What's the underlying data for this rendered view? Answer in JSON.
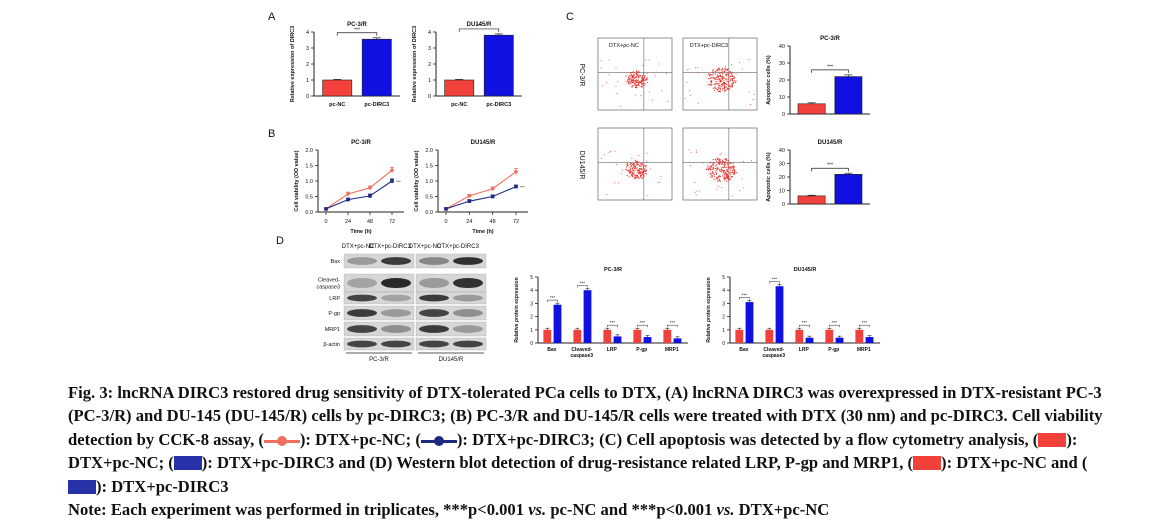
{
  "panels": {
    "A": {
      "letter": "A",
      "charts": [
        {
          "title": "PC-3/R",
          "ylabel": "Relative expression of DIRC3",
          "categories": [
            "pc-NC",
            "pc-DIRC3"
          ],
          "values": [
            1.0,
            3.55
          ],
          "errors": [
            0.04,
            0.09
          ],
          "ylim": [
            0,
            4
          ],
          "yticks": [
            "0",
            "1",
            "2",
            "3",
            "4"
          ],
          "sig": "***"
        },
        {
          "title": "DU145/R",
          "ylabel": "Relative expression of DIRC3",
          "categories": [
            "pc-NC",
            "pc-DIRC3"
          ],
          "values": [
            1.0,
            3.8
          ],
          "errors": [
            0.04,
            0.08
          ],
          "ylim": [
            0,
            4
          ],
          "yticks": [
            "0",
            "1",
            "2",
            "3",
            "4"
          ],
          "sig": "***"
        }
      ]
    },
    "B": {
      "letter": "B",
      "charts": [
        {
          "title": "PC-3/R",
          "ylabel": "Cell viability (OD value)",
          "xlabel": "Time (h)",
          "x": [
            0,
            24,
            48,
            72
          ],
          "xticks": [
            "0",
            "24",
            "48",
            "72"
          ],
          "ylim": [
            0,
            2.0
          ],
          "yticks": [
            "0.0",
            "0.5",
            "1.0",
            "1.5",
            "2.0"
          ],
          "series": [
            {
              "values": [
                0.1,
                0.58,
                0.78,
                1.35
              ],
              "errors": [
                0.02,
                0.06,
                0.06,
                0.09
              ]
            },
            {
              "values": [
                0.1,
                0.4,
                0.52,
                1.0
              ],
              "errors": [
                0.02,
                0.05,
                0.06,
                0.07
              ]
            }
          ],
          "sig": "***"
        },
        {
          "title": "DU145/R",
          "ylabel": "Cell viability (OD value)",
          "xlabel": "Time (h)",
          "x": [
            0,
            24,
            48,
            72
          ],
          "xticks": [
            "0",
            "24",
            "48",
            "72"
          ],
          "ylim": [
            0,
            2.0
          ],
          "yticks": [
            "0.0",
            "0.5",
            "1.0",
            "1.5",
            "2.0"
          ],
          "series": [
            {
              "values": [
                0.1,
                0.52,
                0.75,
                1.3
              ],
              "errors": [
                0.02,
                0.05,
                0.06,
                0.1
              ]
            },
            {
              "values": [
                0.1,
                0.35,
                0.5,
                0.82
              ],
              "errors": [
                0.02,
                0.05,
                0.05,
                0.05
              ]
            }
          ],
          "sig": "***"
        }
      ]
    },
    "C": {
      "letter": "C",
      "flow": [
        {
          "row": "PC-3/R",
          "cols": [
            "DTX+pc-NC",
            "DTX+pc-DIRC3"
          ]
        },
        {
          "row": "DU145/R",
          "cols": [
            "",
            ""
          ]
        }
      ],
      "charts": [
        {
          "title": "PC-3/R",
          "ylabel": "Apoptotic cells (%)",
          "values": [
            6,
            22
          ],
          "errors": [
            0.6,
            1.0
          ],
          "ylim": [
            0,
            40
          ],
          "yticks": [
            "0",
            "10",
            "20",
            "30",
            "40"
          ],
          "sig": "***"
        },
        {
          "title": "DU145/R",
          "ylabel": "Apoptotic cells (%)",
          "values": [
            6,
            22
          ],
          "errors": [
            0.5,
            0.8
          ],
          "ylim": [
            0,
            40
          ],
          "yticks": [
            "0",
            "10",
            "20",
            "30",
            "40"
          ],
          "sig": "***"
        }
      ]
    },
    "D": {
      "letter": "D",
      "blot": {
        "header": [
          "DTX+pc-NC",
          "DTX+pc-DIRC3",
          "DTX+pc-NC",
          "DTX+pc-DIRC3"
        ],
        "rows": [
          "Bax",
          "Cleaved-\ncaspase3",
          "LRP",
          "P-gp",
          "MRP1",
          "β-actin"
        ],
        "groups": [
          "PC-3/R",
          "DU145/R"
        ]
      },
      "charts": [
        {
          "title": "PC-3/R",
          "ylabel": "Relative protein expression",
          "categories": [
            "Bax",
            "Cleaved-\ncaspase3",
            "LRP",
            "P-gp",
            "MRP1"
          ],
          "series": [
            {
              "values": [
                1.0,
                1.0,
                1.0,
                1.0,
                1.0
              ]
            },
            {
              "values": [
                2.9,
                4.0,
                0.5,
                0.45,
                0.35
              ]
            }
          ],
          "ylim": [
            0,
            5
          ],
          "yticks": [
            "0",
            "1",
            "2",
            "3",
            "4",
            "5"
          ],
          "sig": "***"
        },
        {
          "title": "DU145/R",
          "ylabel": "Relative protein expression",
          "categories": [
            "Bax",
            "Cleaved-\ncaspase3",
            "LRP",
            "P-gp",
            "MRP1"
          ],
          "series": [
            {
              "values": [
                1.0,
                1.0,
                1.0,
                1.0,
                1.0
              ]
            },
            {
              "values": [
                3.1,
                4.3,
                0.4,
                0.4,
                0.45
              ]
            }
          ],
          "ylim": [
            0,
            5
          ],
          "yticks": [
            "0",
            "1",
            "2",
            "3",
            "4",
            "5"
          ],
          "sig": "***"
        }
      ]
    }
  },
  "colors": {
    "red": "#f2403a",
    "blue": "#1010e0",
    "line_red": "#f07060",
    "line_blue": "#1c2a80"
  },
  "caption": {
    "fig_label": "Fig. 3:",
    "text1": " lncRNA DIRC3 restored drug sensitivity of DTX-tolerated PCa cells to DTX, (A) lncRNA DIRC3 was overexpressed in DTX-resistant PC-3 (PC-3/R) and DU-145 (DU-145/R) cells by pc-DIRC3; (B) PC-3/R and DU-145/R cells were treated with DTX (30 nm) and pc-DIRC3. Cell viability detection by CCK-8 assay, (",
    "text2": "): DTX+pc-NC; (",
    "text3": "): DTX+pc-DIRC3; (C) Cell apoptosis was detected by a flow cytometry analysis, (",
    "text4": "): DTX+pc-NC; (",
    "text5": "): DTX+pc-DIRC3 and (D) Western blot detection of drug-resistance related LRP, P-gp and MRP1, (",
    "text6": "): DTX+pc-NC and (",
    "text7": "): DTX+pc-DIRC3"
  },
  "note": {
    "part1": "Note: Each experiment was performed in triplicates, ***p<0.001 ",
    "vs1": "vs.",
    "part2": " pc-NC and ***p<0.001 ",
    "vs2": "vs.",
    "part3": " DTX+pc-NC"
  }
}
